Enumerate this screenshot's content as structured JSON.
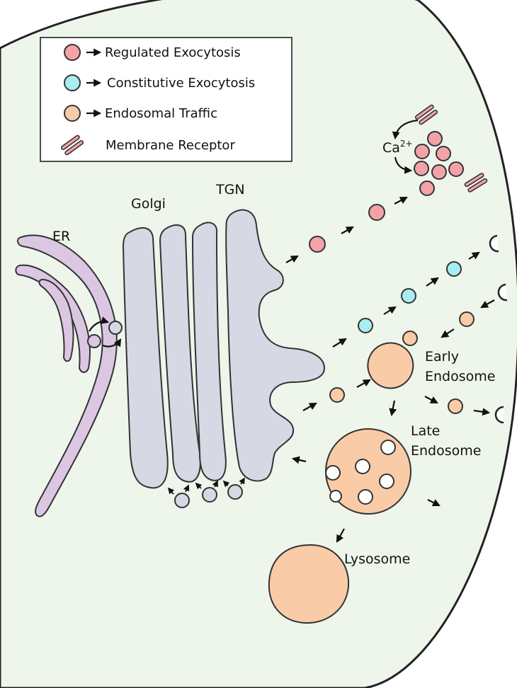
{
  "legend": {
    "items": [
      {
        "label": "Regulated Exocytosis",
        "marker": "circle",
        "color": "#f3a3a8"
      },
      {
        "label": "Constitutive Exocytosis",
        "marker": "circle",
        "color": "#a8eef0"
      },
      {
        "label": "Endosomal Traffic",
        "marker": "circle",
        "color": "#f9cba7"
      },
      {
        "label": "Membrane Receptor",
        "marker": "receptor-icon",
        "color": "#f3a3a8"
      }
    ]
  },
  "labels": {
    "er": "ER",
    "golgi": "Golgi",
    "tgn": "TGN",
    "calcium_base": "Ca",
    "calcium_sup": "2+",
    "early_line1": "Early",
    "early_line2": "Endosome",
    "late_line1": "Late",
    "late_line2": "Endosome",
    "lysosome": "Lysosome"
  },
  "colors": {
    "cytoplasm": "#eef6ec",
    "er": "#dcc7e2",
    "golgi": "#d6d8e4",
    "regulated": "#f3a3a8",
    "constitutive": "#a8eef0",
    "endosomal": "#f9cba7",
    "outline": "#222222"
  }
}
